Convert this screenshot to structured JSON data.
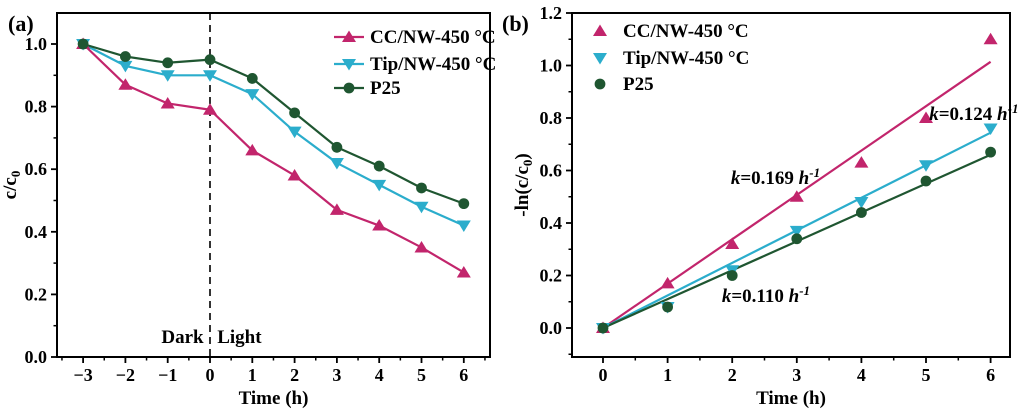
{
  "colors": {
    "cc": "#C2256C",
    "tip": "#2BADCC",
    "p25": "#1F5631",
    "axis": "#000000",
    "background": "#FFFFFF"
  },
  "chart_data": [
    {
      "id": "panel_a",
      "panel_label": "(a)",
      "type": "line",
      "title": "",
      "xlabel": "Time (h)",
      "ylabel": "c/c₀",
      "ylabel_parts": [
        {
          "t": "c/c"
        },
        {
          "t": "0",
          "sub": true
        }
      ],
      "xlim": [
        -3.6,
        6.6
      ],
      "ylim": [
        0,
        1.1
      ],
      "xticks": [
        -3,
        -2,
        -1,
        0,
        1,
        2,
        3,
        4,
        5,
        6
      ],
      "yticks": [
        0.0,
        0.2,
        0.4,
        0.6,
        0.8,
        1.0
      ],
      "grid": false,
      "connect": true,
      "x": [
        -3,
        -2,
        -1,
        0,
        1,
        2,
        3,
        4,
        5,
        6
      ],
      "series": [
        {
          "name": "CC/NW-450 °C",
          "marker": "triangle-up",
          "color_key": "cc",
          "values": [
            1.0,
            0.87,
            0.81,
            0.79,
            0.66,
            0.58,
            0.47,
            0.42,
            0.35,
            0.27
          ]
        },
        {
          "name": "Tip/NW-450 °C",
          "marker": "triangle-down",
          "color_key": "tip",
          "values": [
            1.0,
            0.93,
            0.9,
            0.9,
            0.84,
            0.72,
            0.62,
            0.55,
            0.48,
            0.42
          ]
        },
        {
          "name": "P25",
          "marker": "circle",
          "color_key": "p25",
          "values": [
            1.0,
            0.96,
            0.94,
            0.95,
            0.89,
            0.78,
            0.67,
            0.61,
            0.54,
            0.49
          ]
        }
      ],
      "vline": {
        "x": 0,
        "style": "dashed"
      },
      "region_labels": [
        {
          "text": "Dark",
          "x": -0.15,
          "y": 0.064,
          "anchor": "end"
        },
        {
          "text": "Light",
          "x": 0.17,
          "y": 0.064,
          "anchor": "start"
        }
      ],
      "legend": {
        "position": "top-right",
        "show_line": true
      }
    },
    {
      "id": "panel_b",
      "panel_label": "(b)",
      "type": "scatter",
      "title": "",
      "xlabel": "Time (h)",
      "ylabel": "-ln(c/c₀)",
      "ylabel_parts": [
        {
          "t": "-ln(c/c"
        },
        {
          "t": "0",
          "sub": true
        },
        {
          "t": ")"
        }
      ],
      "xlim": [
        -0.48,
        6.3
      ],
      "ylim": [
        -0.11,
        1.2
      ],
      "xticks": [
        0,
        1,
        2,
        3,
        4,
        5,
        6
      ],
      "yticks": [
        0.0,
        0.2,
        0.4,
        0.6,
        0.8,
        1.0,
        1.2
      ],
      "grid": false,
      "connect": false,
      "x": [
        0,
        1,
        2,
        3,
        4,
        5,
        6
      ],
      "series": [
        {
          "name": "CC/NW-450 °C",
          "marker": "triangle-up",
          "color_key": "cc",
          "fit_k": 0.169,
          "values": [
            0.0,
            0.17,
            0.32,
            0.5,
            0.63,
            0.8,
            1.1
          ]
        },
        {
          "name": "Tip/NW-450 °C",
          "marker": "triangle-down",
          "color_key": "tip",
          "fit_k": 0.124,
          "values": [
            0.0,
            0.08,
            0.22,
            0.37,
            0.48,
            0.62,
            0.76
          ]
        },
        {
          "name": "P25",
          "marker": "circle",
          "color_key": "p25",
          "fit_k": 0.11,
          "values": [
            0.0,
            0.08,
            0.2,
            0.34,
            0.44,
            0.56,
            0.67
          ]
        }
      ],
      "annotations": [
        {
          "text": "k=0.169 h⁻¹",
          "x": 2.67,
          "y": 0.571,
          "anchor": "middle",
          "color_key": "cc"
        },
        {
          "text": "k=0.124 h⁻¹",
          "x": 5.05,
          "y": 0.815,
          "anchor": "start",
          "color_key": "tip"
        },
        {
          "text": "k=0.110 h⁻¹",
          "x": 1.84,
          "y": 0.122,
          "anchor": "start",
          "color_key": "p25"
        }
      ],
      "legend": {
        "position": "top-left",
        "show_line": false
      }
    }
  ]
}
